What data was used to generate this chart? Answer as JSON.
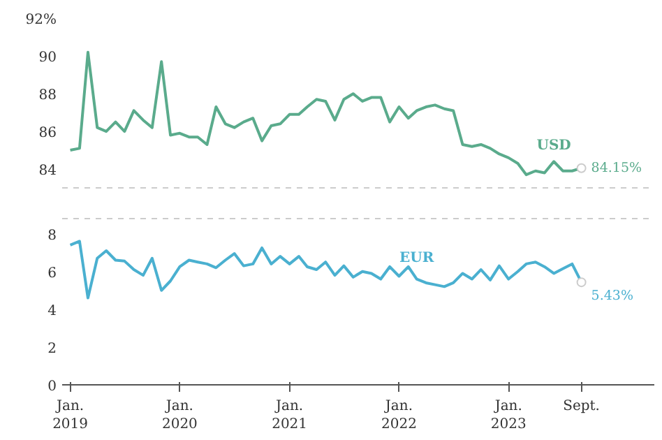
{
  "chart_data": [
    {
      "type": "line",
      "x": [
        "2019-01",
        "2019-02",
        "2019-03",
        "2019-04",
        "2019-05",
        "2019-06",
        "2019-07",
        "2019-08",
        "2019-09",
        "2019-10",
        "2019-11",
        "2019-12",
        "2020-01",
        "2020-02",
        "2020-03",
        "2020-04",
        "2020-05",
        "2020-06",
        "2020-07",
        "2020-08",
        "2020-09",
        "2020-10",
        "2020-11",
        "2020-12",
        "2021-01",
        "2021-02",
        "2021-03",
        "2021-04",
        "2021-05",
        "2021-06",
        "2021-07",
        "2021-08",
        "2021-09",
        "2021-10",
        "2021-11",
        "2021-12",
        "2022-01",
        "2022-02",
        "2022-03",
        "2022-04",
        "2022-05",
        "2022-06",
        "2022-07",
        "2022-08",
        "2022-09",
        "2022-10",
        "2022-11",
        "2022-12",
        "2023-01",
        "2023-02",
        "2023-03",
        "2023-04",
        "2023-05",
        "2023-06",
        "2023-07",
        "2023-08",
        "2023-09"
      ],
      "series": [
        {
          "color": "#5aab8c",
          "values": [
            85.1,
            85.2,
            90.3,
            86.3,
            86.1,
            86.6,
            86.1,
            87.2,
            86.7,
            86.3,
            89.8,
            85.9,
            86.0,
            85.8,
            85.8,
            85.4,
            87.4,
            86.5,
            86.3,
            86.6,
            86.8,
            85.6,
            86.4,
            86.5,
            87.0,
            87.0,
            87.4,
            87.8,
            87.7,
            86.7,
            87.8,
            88.1,
            87.7,
            87.9,
            87.9,
            86.6,
            87.4,
            86.8,
            87.2,
            87.4,
            87.5,
            87.3,
            87.2,
            85.4,
            85.3,
            85.4,
            85.2,
            84.9,
            84.7,
            84.4,
            83.8,
            84.0,
            83.9,
            84.5,
            84.0,
            84.0,
            84.15
          ],
          "value_labels": [
            null,
            null,
            null,
            null,
            null,
            null,
            null,
            null,
            null,
            null,
            null,
            null,
            null,
            null,
            null,
            null,
            null,
            null,
            null,
            null,
            null,
            null,
            null,
            null,
            null,
            null,
            null,
            null,
            null,
            null,
            null,
            null,
            null,
            null,
            null,
            null,
            null,
            null,
            null,
            null,
            null,
            null,
            null,
            null,
            null,
            null,
            null,
            null,
            null,
            null,
            null,
            null,
            null,
            null,
            null,
            null,
            "84.15%"
          ]
        }
      ],
      "xlim": [
        "2018-12-05",
        "2024-05-01"
      ],
      "ylim": [
        83.1,
        92
      ],
      "yticks": [
        84,
        86,
        88,
        90,
        {
          "value": 92,
          "label": "92%"
        }
      ],
      "tick_labels": "y",
      "grid": false,
      "annotations": [
        {
          "text": "USD",
          "x": "2023-06",
          "y": 84.9
        }
      ]
    },
    {
      "type": "line",
      "x": [
        "2019-01",
        "2019-02",
        "2019-03",
        "2019-04",
        "2019-05",
        "2019-06",
        "2019-07",
        "2019-08",
        "2019-09",
        "2019-10",
        "2019-11",
        "2019-12",
        "2020-01",
        "2020-02",
        "2020-03",
        "2020-04",
        "2020-05",
        "2020-06",
        "2020-07",
        "2020-08",
        "2020-09",
        "2020-10",
        "2020-11",
        "2020-12",
        "2021-01",
        "2021-02",
        "2021-03",
        "2021-04",
        "2021-05",
        "2021-06",
        "2021-07",
        "2021-08",
        "2021-09",
        "2021-10",
        "2021-11",
        "2021-12",
        "2022-01",
        "2022-02",
        "2022-03",
        "2022-04",
        "2022-05",
        "2022-06",
        "2022-07",
        "2022-08",
        "2022-09",
        "2022-10",
        "2022-11",
        "2022-12",
        "2023-01",
        "2023-02",
        "2023-03",
        "2023-04",
        "2023-05",
        "2023-06",
        "2023-07",
        "2023-08",
        "2023-09"
      ],
      "series": [
        {
          "color": "#4ab0d0",
          "values": [
            7.4,
            7.6,
            4.6,
            6.7,
            7.1,
            6.6,
            6.55,
            6.1,
            5.8,
            6.7,
            5.0,
            5.5,
            6.25,
            6.6,
            6.5,
            6.4,
            6.2,
            6.6,
            6.95,
            6.3,
            6.4,
            7.25,
            6.4,
            6.8,
            6.4,
            6.8,
            6.25,
            6.1,
            6.5,
            5.8,
            6.3,
            5.7,
            6.0,
            5.9,
            5.6,
            6.25,
            5.75,
            6.25,
            5.6,
            5.4,
            5.3,
            5.2,
            5.4,
            5.9,
            5.6,
            6.1,
            5.55,
            6.3,
            5.6,
            6.0,
            6.4,
            6.5,
            6.25,
            5.9,
            6.15,
            6.4,
            5.43
          ],
          "value_labels": [
            null,
            null,
            null,
            null,
            null,
            null,
            null,
            null,
            null,
            null,
            null,
            null,
            null,
            null,
            null,
            null,
            null,
            null,
            null,
            null,
            null,
            null,
            null,
            null,
            null,
            null,
            null,
            null,
            null,
            null,
            null,
            null,
            null,
            null,
            null,
            null,
            null,
            null,
            null,
            null,
            null,
            null,
            null,
            null,
            null,
            null,
            null,
            null,
            null,
            null,
            null,
            null,
            null,
            null,
            null,
            null,
            "5.43%"
          ]
        }
      ],
      "xlim": [
        "2018-12-05",
        "2024-05-01"
      ],
      "ylim": [
        0,
        8.8
      ],
      "xticks": [
        {
          "value": "2019-01",
          "label": "Jan.\n2019"
        },
        {
          "value": "2020-01",
          "label": "Jan.\n2020"
        },
        {
          "value": "2021-01",
          "label": "Jan.\n2021"
        },
        {
          "value": "2022-01",
          "label": "Jan.\n2022"
        },
        {
          "value": "2023-01",
          "label": "Jan.\n2023"
        },
        {
          "value": "2023-09",
          "label": "Sept."
        }
      ],
      "yticks": [
        0,
        2,
        4,
        6,
        8
      ],
      "grid": false,
      "annotations": [
        {
          "text": "EUR",
          "x": "2022-03",
          "y": 6.3
        }
      ]
    }
  ]
}
